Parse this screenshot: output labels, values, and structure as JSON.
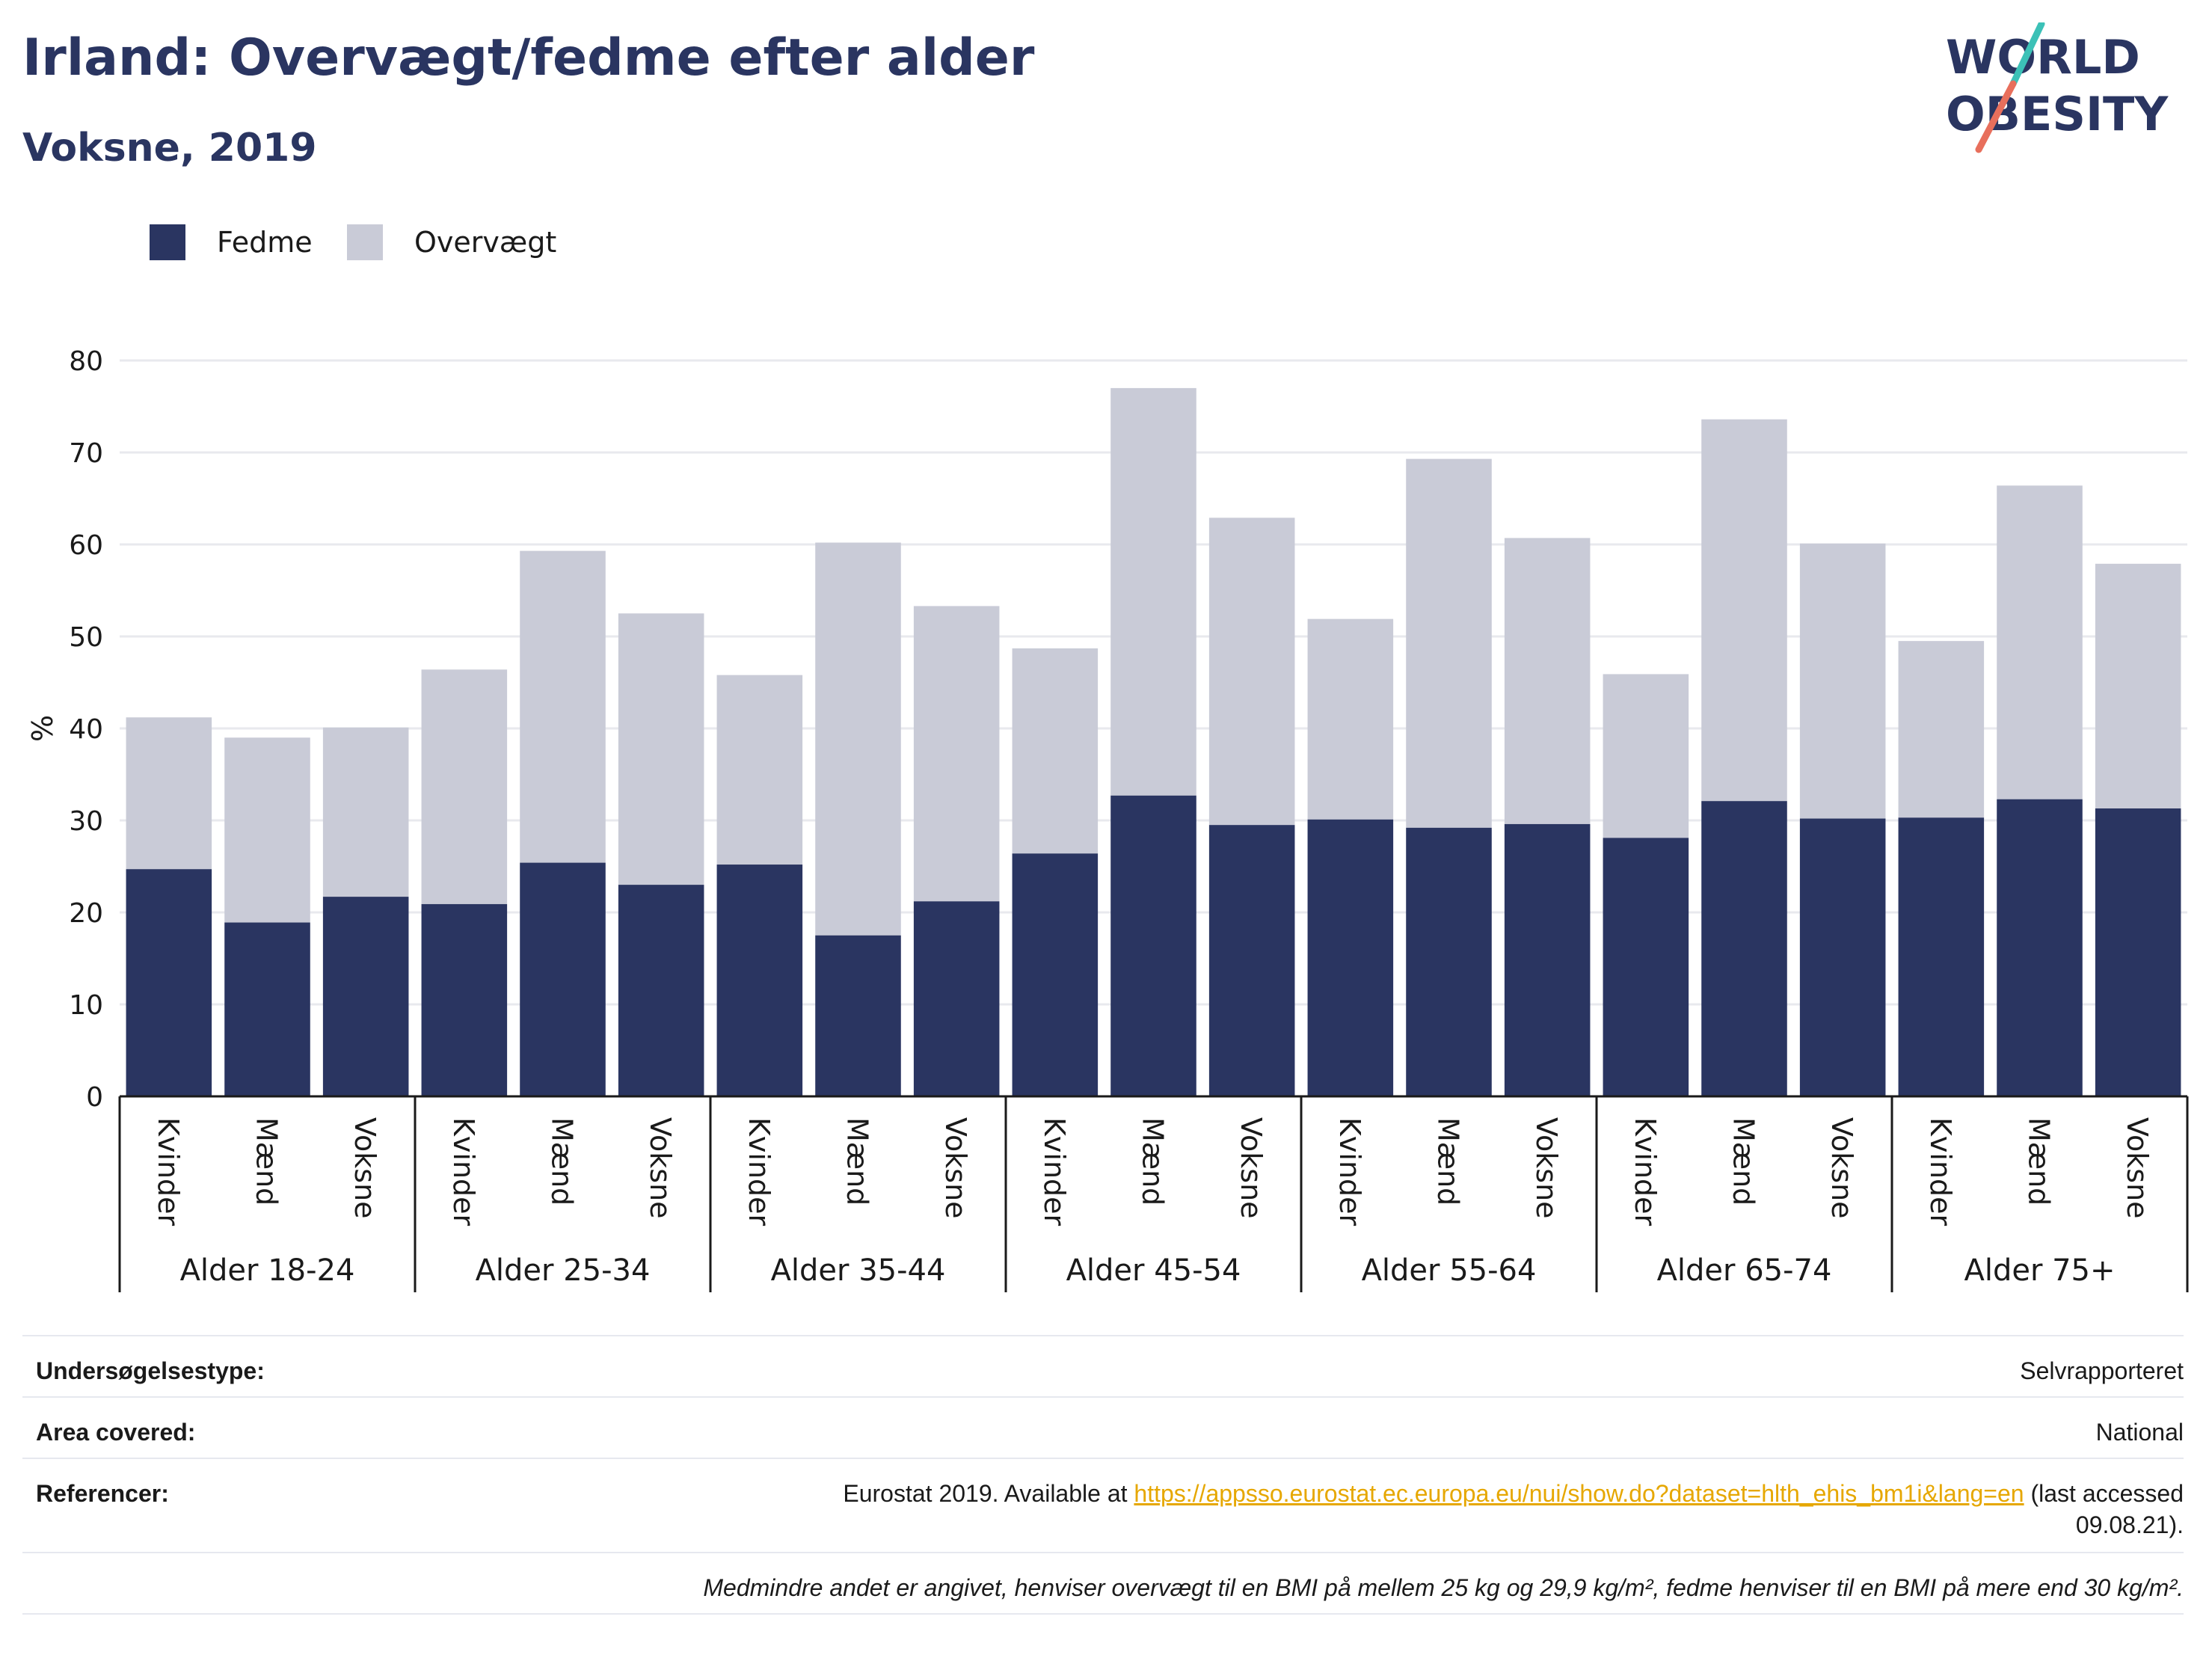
{
  "header": {
    "title": "Irland: Overvægt/fedme efter alder",
    "subtitle": "Voksne, 2019"
  },
  "logo": {
    "line1": "WORLD",
    "line2": "OBESITY"
  },
  "legend": [
    {
      "label": "Fedme",
      "color": "#2a3561"
    },
    {
      "label": "Overvægt",
      "color": "#c9cbd7"
    }
  ],
  "chart_data": {
    "type": "bar",
    "stacked": true,
    "ylabel": "%",
    "ylim": [
      0,
      80
    ],
    "yticks": [
      0,
      10,
      20,
      30,
      40,
      50,
      60,
      70,
      80
    ],
    "grid": true,
    "legend_position": "top-left",
    "groups": [
      "Alder 18-24",
      "Alder 25-34",
      "Alder 35-44",
      "Alder 45-54",
      "Alder 55-64",
      "Alder 65-74",
      "Alder 75+"
    ],
    "subcategories": [
      "Kvinder",
      "Mænd",
      "Voksne"
    ],
    "series": [
      {
        "name": "Fedme",
        "color": "#2a3561",
        "values": [
          24.7,
          18.9,
          21.7,
          20.9,
          25.4,
          23.0,
          25.2,
          17.5,
          21.2,
          26.4,
          32.7,
          29.5,
          30.1,
          29.2,
          29.6,
          28.1,
          32.1,
          30.2,
          30.3,
          32.3,
          31.3
        ]
      },
      {
        "name": "Overvægt",
        "color": "#c9cbd7",
        "values": [
          16.5,
          20.1,
          18.4,
          25.5,
          33.9,
          29.5,
          20.6,
          42.7,
          32.1,
          22.3,
          44.3,
          33.4,
          21.8,
          40.1,
          31.1,
          17.8,
          41.5,
          29.9,
          19.2,
          34.1,
          26.6
        ]
      }
    ]
  },
  "info": {
    "survey_label": "Undersøgelsestype:",
    "survey_value": "Selvrapporteret",
    "area_label": "Area covered:",
    "area_value": "National",
    "ref_label": "Referencer:",
    "ref_prefix": "Eurostat 2019. Available at",
    "ref_link": "https://appsso.eurostat.ec.europa.eu/nui/show.do?dataset=hlth_ehis_bm1i&lang=en",
    "ref_suffix": "(last accessed",
    "ref_date": "09.08.21).",
    "footnote": "Medmindre andet er angivet, henviser overvægt til en BMI på mellem 25 kg og 29,9 kg/m², fedme henviser til en BMI på mere end 30 kg/m²."
  }
}
